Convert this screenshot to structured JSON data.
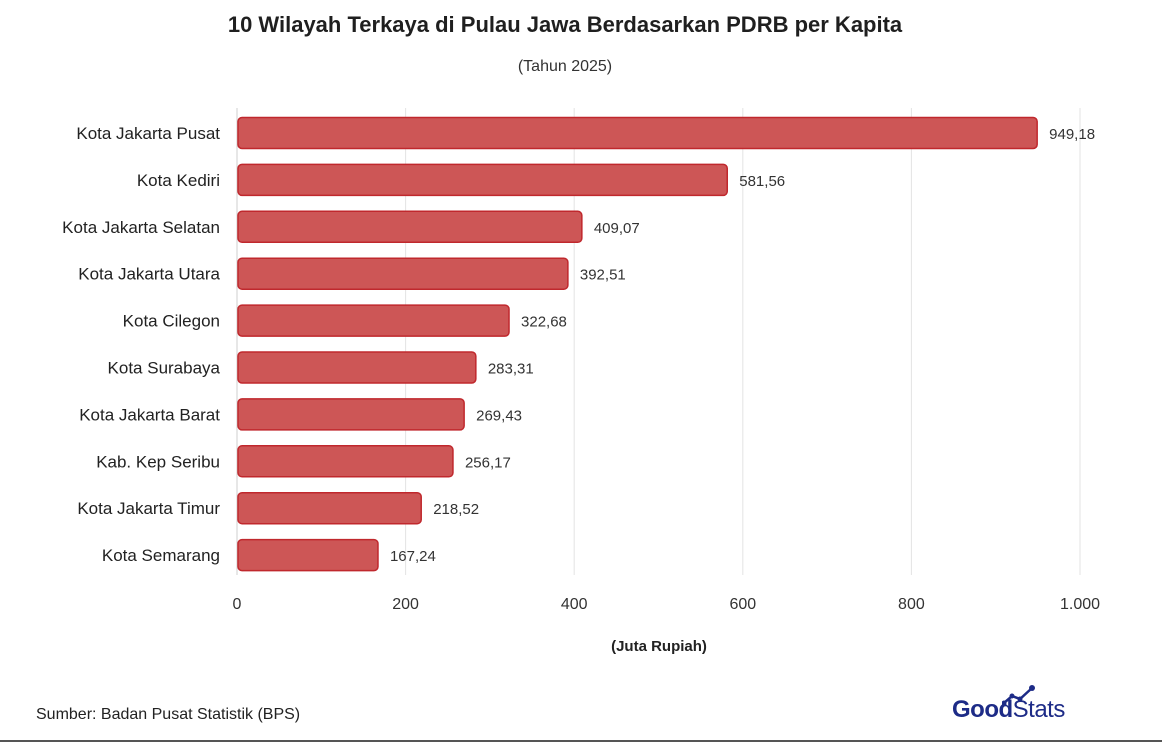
{
  "header": {
    "title": "10 Wilayah Terkaya di Pulau Jawa Berdasarkan PDRB per Kapita",
    "subtitle": "(Tahun 2025)"
  },
  "footer": {
    "source": "Sumber: Badan Pusat Statistik (BPS)",
    "logo_part1": "Good",
    "logo_part2": "Stats"
  },
  "chart_data": {
    "type": "bar",
    "orientation": "horizontal",
    "title": "10 Wilayah Terkaya di Pulau Jawa Berdasarkan PDRB per Kapita",
    "subtitle": "(Tahun 2025)",
    "xlabel": "(Juta Rupiah)",
    "ylabel": "",
    "xlim": [
      0,
      1000
    ],
    "xticks": [
      0,
      200,
      400,
      600,
      800,
      1000
    ],
    "xtick_labels": [
      "0",
      "200",
      "400",
      "600",
      "800",
      "1.000"
    ],
    "grid": "vertical",
    "bar_color": "#cd5656",
    "bar_edge_color": "#c0282d",
    "categories": [
      "Kota Jakarta Pusat",
      "Kota Kediri",
      "Kota Jakarta Selatan",
      "Kota Jakarta Utara",
      "Kota Cilegon",
      "Kota Surabaya",
      "Kota Jakarta Barat",
      "Kab. Kep Seribu",
      "Kota Jakarta Timur",
      "Kota Semarang"
    ],
    "values": [
      949.18,
      581.56,
      409.07,
      392.51,
      322.68,
      283.31,
      269.43,
      256.17,
      218.52,
      167.24
    ],
    "value_labels": [
      "949,18",
      "581,56",
      "409,07",
      "392,51",
      "322,68",
      "283,31",
      "269,43",
      "256,17",
      "218,52",
      "167,24"
    ]
  }
}
